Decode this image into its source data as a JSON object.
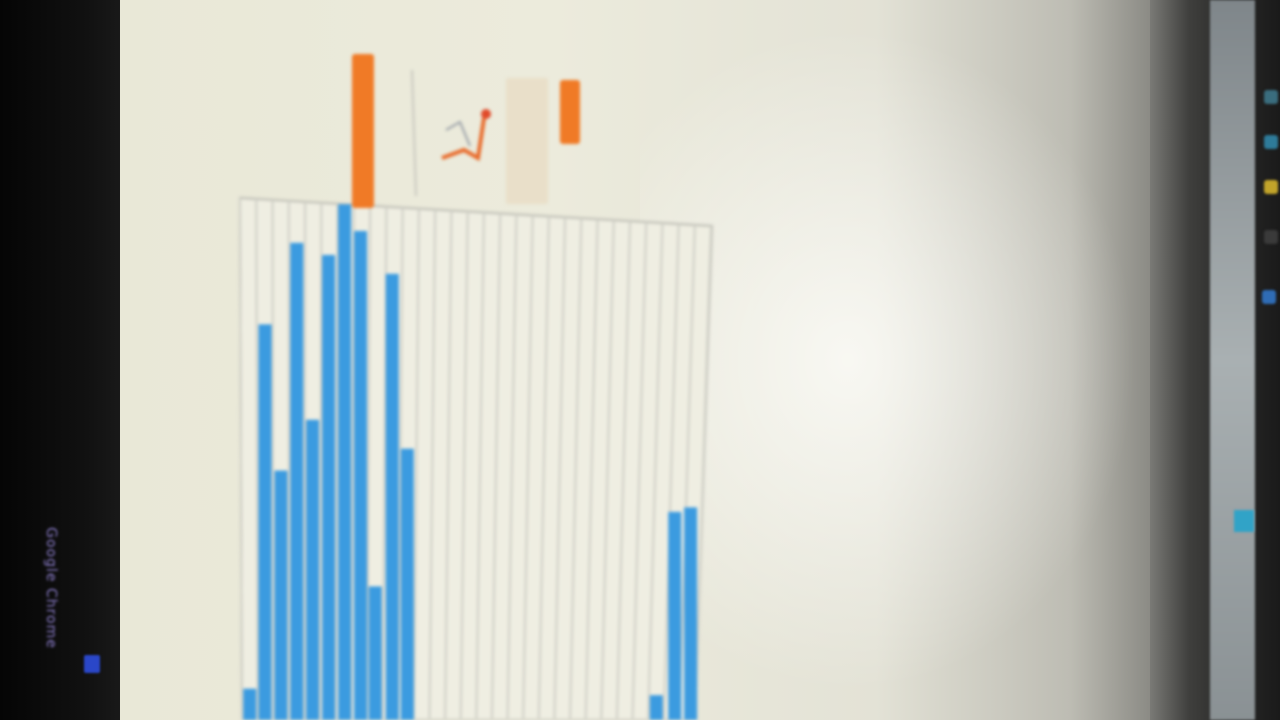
{
  "taskbar": {
    "label": "Google Chrome"
  },
  "icons": {
    "taskbar_app": "app-icon",
    "side_icons": [
      "app-icon",
      "app-icon",
      "folder-icon",
      "app-icon",
      "app-icon"
    ]
  },
  "colors": {
    "bar": "#3b9be0",
    "highlight": "#f07a26",
    "grid": "#cfcfc6",
    "screen_bg": "#ecebdc"
  },
  "chart_data": {
    "type": "bar",
    "title": "",
    "xlabel": "",
    "ylabel": "",
    "grid": true,
    "legend": "none",
    "ylim": [
      0,
      100
    ],
    "series": [
      {
        "values": [
          6,
          76,
          48,
          92,
          58,
          90,
          100,
          95,
          26,
          87,
          53,
          0,
          0,
          0,
          0,
          0,
          0,
          0,
          0,
          0,
          0,
          0,
          0,
          0,
          0,
          0,
          5,
          42,
          43
        ]
      }
    ]
  }
}
